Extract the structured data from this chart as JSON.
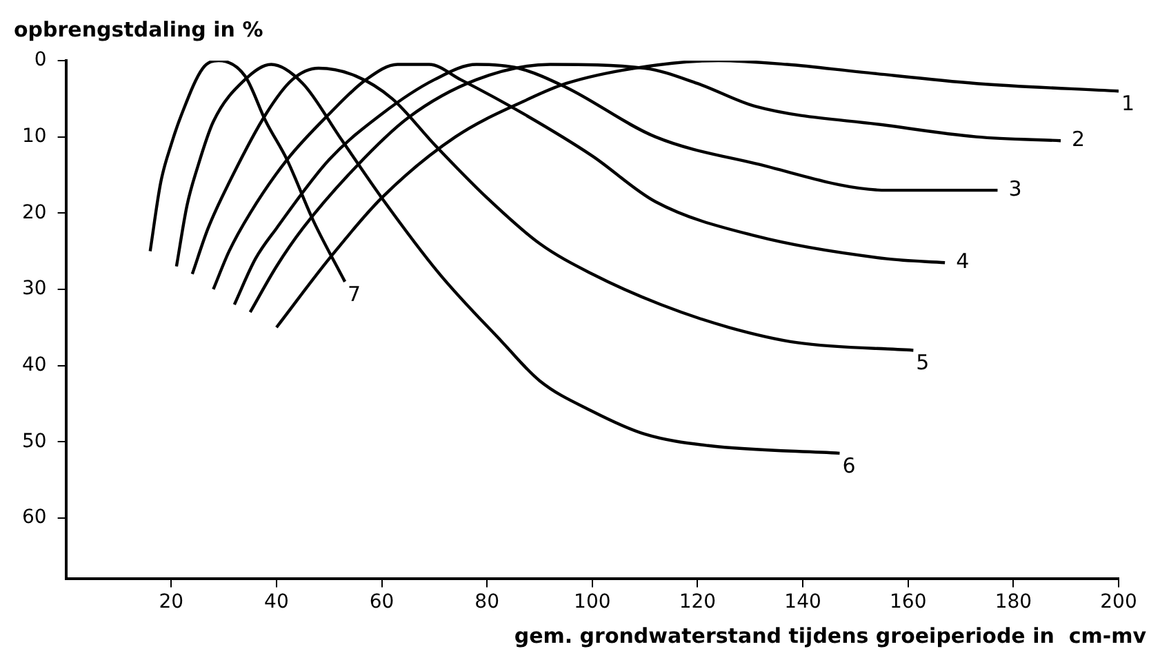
{
  "chart_data": {
    "type": "line",
    "ylabel": "opbrengstdaling in %",
    "xlabel": "gem. grondwaterstand tijdens groeiperiode in  cm-mv",
    "xlim": [
      0,
      200
    ],
    "xticks": [
      20,
      40,
      60,
      80,
      100,
      120,
      140,
      160,
      180,
      200
    ],
    "ylim": [
      68,
      0
    ],
    "yticks": [
      0,
      10,
      20,
      30,
      40,
      50,
      60
    ],
    "grid": false,
    "legend": false,
    "marker": "none",
    "line_style": "solid",
    "series": [
      {
        "name": "1",
        "color": "#000000",
        "x": [
          40,
          50,
          60,
          74,
          88,
          95,
          108,
          124,
          137,
          151,
          173,
          200
        ],
        "values": [
          35,
          26,
          18,
          10,
          5,
          3,
          1,
          0,
          0.5,
          1.5,
          3,
          4
        ]
      },
      {
        "name": "2",
        "color": "#000000",
        "x": [
          35,
          40,
          45,
          55,
          65,
          78,
          92,
          110,
          120,
          131,
          156,
          173,
          189
        ],
        "values": [
          33,
          27,
          22,
          14,
          7.5,
          2.5,
          0.5,
          1,
          3,
          6,
          8.5,
          10,
          10.5
        ]
      },
      {
        "name": "3",
        "color": "#000000",
        "x": [
          32,
          36,
          40,
          50,
          60,
          70,
          78,
          86,
          95,
          112,
          131,
          156,
          177
        ],
        "values": [
          32,
          26,
          22,
          13,
          7,
          2.5,
          0.5,
          1,
          3.5,
          10,
          13.5,
          17,
          17
        ]
      },
      {
        "name": "4",
        "color": "#000000",
        "x": [
          28,
          31,
          35,
          42,
          50,
          57,
          63,
          69,
          75,
          87,
          100,
          112,
          131,
          156,
          167
        ],
        "values": [
          30,
          25,
          20,
          13,
          7,
          2.5,
          0.5,
          0.5,
          2.5,
          7,
          12.5,
          18.5,
          23,
          26,
          26.5
        ]
      },
      {
        "name": "5",
        "color": "#000000",
        "x": [
          24,
          27,
          31,
          38,
          43,
          48,
          55,
          62,
          70,
          80,
          90,
          100,
          113,
          126,
          139,
          161
        ],
        "values": [
          28,
          22,
          16,
          7,
          2.5,
          1,
          2,
          5,
          11,
          18,
          24,
          28,
          32,
          35,
          37,
          38
        ]
      },
      {
        "name": "6",
        "color": "#000000",
        "x": [
          21,
          23,
          25,
          28,
          34,
          39,
          45,
          52,
          60,
          71,
          83,
          90,
          100,
          110,
          122,
          147
        ],
        "values": [
          27,
          19,
          14,
          8,
          2.5,
          0.5,
          3,
          10,
          18,
          28,
          37,
          42,
          46,
          49,
          50.5,
          51.5
        ]
      },
      {
        "name": "7",
        "color": "#000000",
        "x": [
          16,
          18,
          20,
          22,
          26,
          29,
          34,
          38,
          42,
          47,
          53
        ],
        "values": [
          25,
          16,
          11,
          7,
          1,
          0,
          2,
          8,
          13,
          21,
          29
        ]
      }
    ]
  }
}
